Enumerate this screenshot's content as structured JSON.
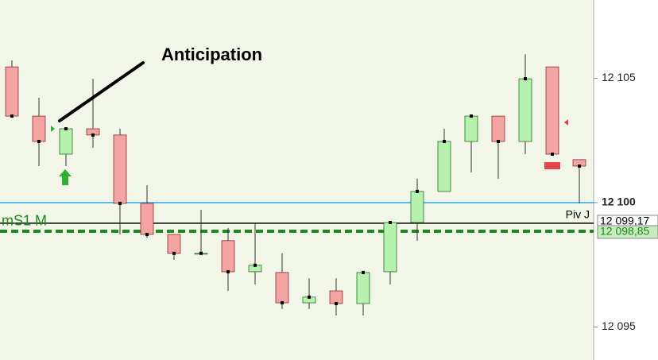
{
  "chart_data": {
    "type": "candlestick",
    "annotation": "Anticipation",
    "open": [
      12105.46,
      12103.48,
      12101.95,
      12102.97,
      12102.72,
      12099.97,
      12098.72,
      12097.96,
      12098.47,
      12097.22,
      12097.19,
      12095.97,
      12096.45,
      12095.94,
      12097.22,
      12099.2,
      12100.45,
      12102.46,
      12103.48,
      12102.46,
      12105.46,
      12101.73
    ],
    "high": [
      12105.72,
      12104.22,
      12102.97,
      12104.98,
      12102.97,
      12100.7,
      12098.72,
      12099.71,
      12098.98,
      12099.2,
      12097.96,
      12096.96,
      12096.96,
      12097.19,
      12099.2,
      12100.96,
      12102.97,
      12103.48,
      12103.48,
      12105.97,
      12105.46,
      12101.73
    ],
    "low": [
      12103.48,
      12101.47,
      12101.47,
      12102.2,
      12098.72,
      12098.59,
      12097.7,
      12097.96,
      12096.45,
      12096.71,
      12095.72,
      12095.72,
      12095.46,
      12095.46,
      12096.71,
      12098.47,
      12100.45,
      12101.21,
      12100.96,
      12101.95,
      12101.95,
      12099.97
    ],
    "close": [
      12103.48,
      12102.46,
      12102.97,
      12102.72,
      12099.97,
      12098.72,
      12097.96,
      12097.96,
      12097.22,
      12097.48,
      12095.97,
      12096.2,
      12095.94,
      12097.19,
      12099.2,
      12100.45,
      12102.46,
      12103.48,
      12102.46,
      12104.98,
      12101.95,
      12101.47
    ],
    "up_color": "#b6f2ad",
    "down_color": "#f4a3a3",
    "ylim": [
      12093.67,
      12108.15
    ],
    "yticks": [
      {
        "value": 12095,
        "label": "12 095"
      },
      {
        "value": 12100,
        "label": "12 100"
      },
      {
        "value": 12105,
        "label": "12 105"
      }
    ],
    "levels": [
      {
        "value": 12100,
        "color": "#2ea6e6",
        "style": "solid"
      },
      {
        "name": "Piv J",
        "value": 12099.17,
        "label": "12 099,17",
        "color": "#000000",
        "style": "solid"
      },
      {
        "name": "mS1 M",
        "value": 12098.85,
        "label": "12 098,85",
        "color": "#1a8a1a",
        "style": "dashed"
      }
    ]
  }
}
